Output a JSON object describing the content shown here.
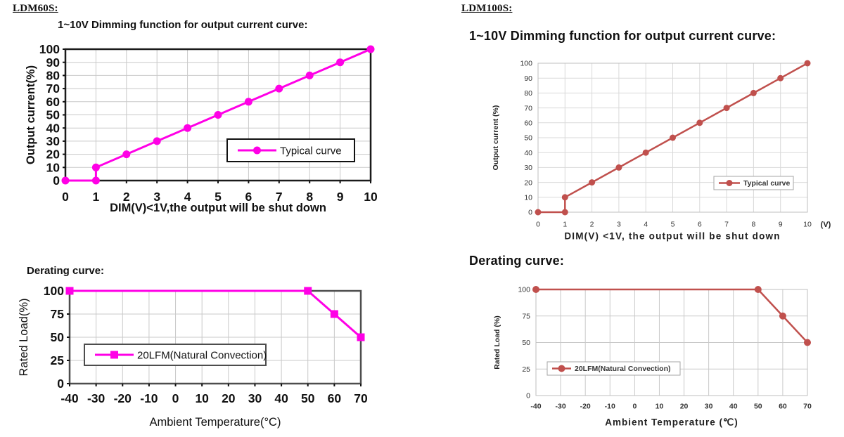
{
  "panels": {
    "left": {
      "heading": "LDM60S:"
    },
    "right": {
      "heading": "LDM100S:"
    }
  },
  "chart_data": [
    {
      "id": "ldm60s-dimming",
      "type": "line",
      "title": "1~10V Dimming function for output current curve:",
      "xlabel": "DIM(V)<1V,the output will be shut down",
      "ylabel": "Output current(%)",
      "xlim": [
        0,
        10
      ],
      "ylim": [
        0,
        100
      ],
      "x_ticks": [
        0,
        1,
        2,
        3,
        4,
        5,
        6,
        7,
        8,
        9,
        10
      ],
      "y_ticks": [
        0,
        10,
        20,
        30,
        40,
        50,
        60,
        70,
        80,
        90,
        100
      ],
      "grid": true,
      "legend": {
        "label": "Typical curve",
        "position": "inside-lower-right"
      },
      "series": [
        {
          "name": "Typical curve",
          "color": "#FF00E6",
          "marker": "circle",
          "points": [
            [
              0,
              0
            ],
            [
              1,
              0
            ],
            [
              1,
              10
            ],
            [
              2,
              20
            ],
            [
              3,
              30
            ],
            [
              4,
              40
            ],
            [
              5,
              50
            ],
            [
              6,
              60
            ],
            [
              7,
              70
            ],
            [
              8,
              80
            ],
            [
              9,
              90
            ],
            [
              10,
              100
            ]
          ]
        }
      ]
    },
    {
      "id": "ldm60s-derating",
      "type": "line",
      "title": "Derating curve:",
      "xlabel": "Ambient Temperature(°C)",
      "ylabel": "Rated Load(%)",
      "xlim": [
        -40,
        70
      ],
      "ylim": [
        0,
        100
      ],
      "x_ticks": [
        -40,
        -30,
        -20,
        -10,
        0,
        10,
        20,
        30,
        40,
        50,
        60,
        70
      ],
      "y_ticks": [
        0,
        25,
        50,
        75,
        100
      ],
      "grid": true,
      "legend": {
        "label": "20LFM(Natural Convection)",
        "position": "inside-lower-left"
      },
      "series": [
        {
          "name": "20LFM(Natural Convection)",
          "color": "#FF00E6",
          "marker": "square",
          "points": [
            [
              -40,
              100
            ],
            [
              50,
              100
            ],
            [
              60,
              75
            ],
            [
              70,
              50
            ]
          ]
        }
      ]
    },
    {
      "id": "ldm100s-dimming",
      "type": "line",
      "title": "1~10V Dimming function for output current curve:",
      "xlabel": "DIM(V) <1V, the output will be shut down",
      "ylabel": "Output current (%)",
      "x_unit": "(V)",
      "xlim": [
        0,
        10
      ],
      "ylim": [
        0,
        100
      ],
      "x_ticks": [
        0,
        1,
        2,
        3,
        4,
        5,
        6,
        7,
        8,
        9,
        10
      ],
      "y_ticks": [
        0,
        10,
        20,
        30,
        40,
        50,
        60,
        70,
        80,
        90,
        100
      ],
      "grid": true,
      "legend": {
        "label": "Typical curve",
        "position": "inside-lower-right"
      },
      "series": [
        {
          "name": "Typical curve",
          "color": "#C0504D",
          "marker": "circle",
          "points": [
            [
              0,
              0
            ],
            [
              1,
              0
            ],
            [
              1,
              10
            ],
            [
              2,
              20
            ],
            [
              3,
              30
            ],
            [
              4,
              40
            ],
            [
              5,
              50
            ],
            [
              6,
              60
            ],
            [
              7,
              70
            ],
            [
              8,
              80
            ],
            [
              9,
              90
            ],
            [
              10,
              100
            ]
          ]
        }
      ]
    },
    {
      "id": "ldm100s-derating",
      "type": "line",
      "title": "Derating curve:",
      "xlabel": "Ambient Temperature (℃)",
      "ylabel": "Rated Load (%)",
      "xlim": [
        -40,
        70
      ],
      "ylim": [
        0,
        100
      ],
      "x_ticks": [
        -40,
        -30,
        -20,
        -10,
        0,
        10,
        20,
        30,
        40,
        50,
        60,
        70
      ],
      "y_ticks": [
        0,
        25,
        50,
        75,
        100
      ],
      "grid": true,
      "legend": {
        "label": "20LFM(Natural Convection)",
        "position": "inside-lower-left"
      },
      "series": [
        {
          "name": "20LFM(Natural Convection)",
          "color": "#C0504D",
          "marker": "circle",
          "points": [
            [
              -40,
              100
            ],
            [
              50,
              100
            ],
            [
              60,
              75
            ],
            [
              70,
              50
            ]
          ]
        }
      ]
    }
  ]
}
